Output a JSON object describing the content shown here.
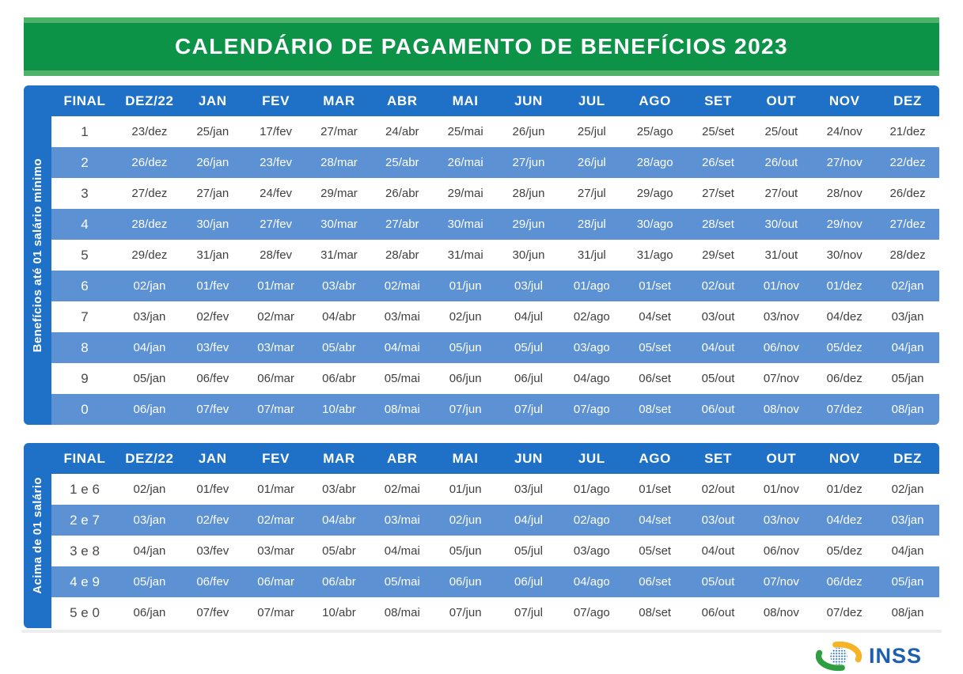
{
  "title": "CALENDÁRIO DE PAGAMENTO DE BENEFÍCIOS 2023",
  "columns": [
    "FINAL",
    "DEZ/22",
    "JAN",
    "FEV",
    "MAR",
    "ABR",
    "MAI",
    "JUN",
    "JUL",
    "AGO",
    "SET",
    "OUT",
    "NOV",
    "DEZ"
  ],
  "tables": [
    {
      "side_label": "Benefícios até 01 salário mínimo",
      "rows": [
        {
          "final": "1",
          "dates": [
            "23/dez",
            "25/jan",
            "17/fev",
            "27/mar",
            "24/abr",
            "25/mai",
            "26/jun",
            "25/jul",
            "25/ago",
            "25/set",
            "25/out",
            "24/nov",
            "21/dez"
          ]
        },
        {
          "final": "2",
          "dates": [
            "26/dez",
            "26/jan",
            "23/fev",
            "28/mar",
            "25/abr",
            "26/mai",
            "27/jun",
            "26/jul",
            "28/ago",
            "26/set",
            "26/out",
            "27/nov",
            "22/dez"
          ]
        },
        {
          "final": "3",
          "dates": [
            "27/dez",
            "27/jan",
            "24/fev",
            "29/mar",
            "26/abr",
            "29/mai",
            "28/jun",
            "27/jul",
            "29/ago",
            "27/set",
            "27/out",
            "28/nov",
            "26/dez"
          ]
        },
        {
          "final": "4",
          "dates": [
            "28/dez",
            "30/jan",
            "27/fev",
            "30/mar",
            "27/abr",
            "30/mai",
            "29/jun",
            "28/jul",
            "30/ago",
            "28/set",
            "30/out",
            "29/nov",
            "27/dez"
          ]
        },
        {
          "final": "5",
          "dates": [
            "29/dez",
            "31/jan",
            "28/fev",
            "31/mar",
            "28/abr",
            "31/mai",
            "30/jun",
            "31/jul",
            "31/ago",
            "29/set",
            "31/out",
            "30/nov",
            "28/dez"
          ]
        },
        {
          "final": "6",
          "dates": [
            "02/jan",
            "01/fev",
            "01/mar",
            "03/abr",
            "02/mai",
            "01/jun",
            "03/jul",
            "01/ago",
            "01/set",
            "02/out",
            "01/nov",
            "01/dez",
            "02/jan"
          ]
        },
        {
          "final": "7",
          "dates": [
            "03/jan",
            "02/fev",
            "02/mar",
            "04/abr",
            "03/mai",
            "02/jun",
            "04/jul",
            "02/ago",
            "04/set",
            "03/out",
            "03/nov",
            "04/dez",
            "03/jan"
          ]
        },
        {
          "final": "8",
          "dates": [
            "04/jan",
            "03/fev",
            "03/mar",
            "05/abr",
            "04/mai",
            "05/jun",
            "05/jul",
            "03/ago",
            "05/set",
            "04/out",
            "06/nov",
            "05/dez",
            "04/jan"
          ]
        },
        {
          "final": "9",
          "dates": [
            "05/jan",
            "06/fev",
            "06/mar",
            "06/abr",
            "05/mai",
            "06/jun",
            "06/jul",
            "04/ago",
            "06/set",
            "05/out",
            "07/nov",
            "06/dez",
            "05/jan"
          ]
        },
        {
          "final": "0",
          "dates": [
            "06/jan",
            "07/fev",
            "07/mar",
            "10/abr",
            "08/mai",
            "07/jun",
            "07/jul",
            "07/ago",
            "08/set",
            "06/out",
            "08/nov",
            "07/dez",
            "08/jan"
          ]
        }
      ]
    },
    {
      "side_label": "Acima de 01 salário",
      "rows": [
        {
          "final": "1 e 6",
          "dates": [
            "02/jan",
            "01/fev",
            "01/mar",
            "03/abr",
            "02/mai",
            "01/jun",
            "03/jul",
            "01/ago",
            "01/set",
            "02/out",
            "01/nov",
            "01/dez",
            "02/jan"
          ]
        },
        {
          "final": "2 e 7",
          "dates": [
            "03/jan",
            "02/fev",
            "02/mar",
            "04/abr",
            "03/mai",
            "02/jun",
            "04/jul",
            "02/ago",
            "04/set",
            "03/out",
            "03/nov",
            "04/dez",
            "03/jan"
          ]
        },
        {
          "final": "3 e 8",
          "dates": [
            "04/jan",
            "03/fev",
            "03/mar",
            "05/abr",
            "04/mai",
            "05/jun",
            "05/jul",
            "03/ago",
            "05/set",
            "04/out",
            "06/nov",
            "05/dez",
            "04/jan"
          ]
        },
        {
          "final": "4 e 9",
          "dates": [
            "05/jan",
            "06/fev",
            "06/mar",
            "06/abr",
            "05/mai",
            "06/jun",
            "06/jul",
            "04/ago",
            "06/set",
            "05/out",
            "07/nov",
            "06/dez",
            "05/jan"
          ]
        },
        {
          "final": "5 e 0",
          "dates": [
            "06/jan",
            "07/fev",
            "07/mar",
            "10/abr",
            "08/mai",
            "07/jun",
            "07/jul",
            "07/ago",
            "08/set",
            "06/out",
            "08/nov",
            "07/dez",
            "08/jan"
          ]
        }
      ]
    }
  ],
  "footer": {
    "brand": "INSS"
  },
  "colors": {
    "banner_outer_green": "#4FB269",
    "banner_inner_green": "#0C9347",
    "header_blue": "#1F71C8",
    "stripe_blue": "#5C91D4",
    "text_dark": "#3F3F3F",
    "brand_blue": "#1D5FAE",
    "logo_green": "#2E9E41",
    "logo_yellow": "#F5B325",
    "divider_gray": "#EDEDED"
  }
}
